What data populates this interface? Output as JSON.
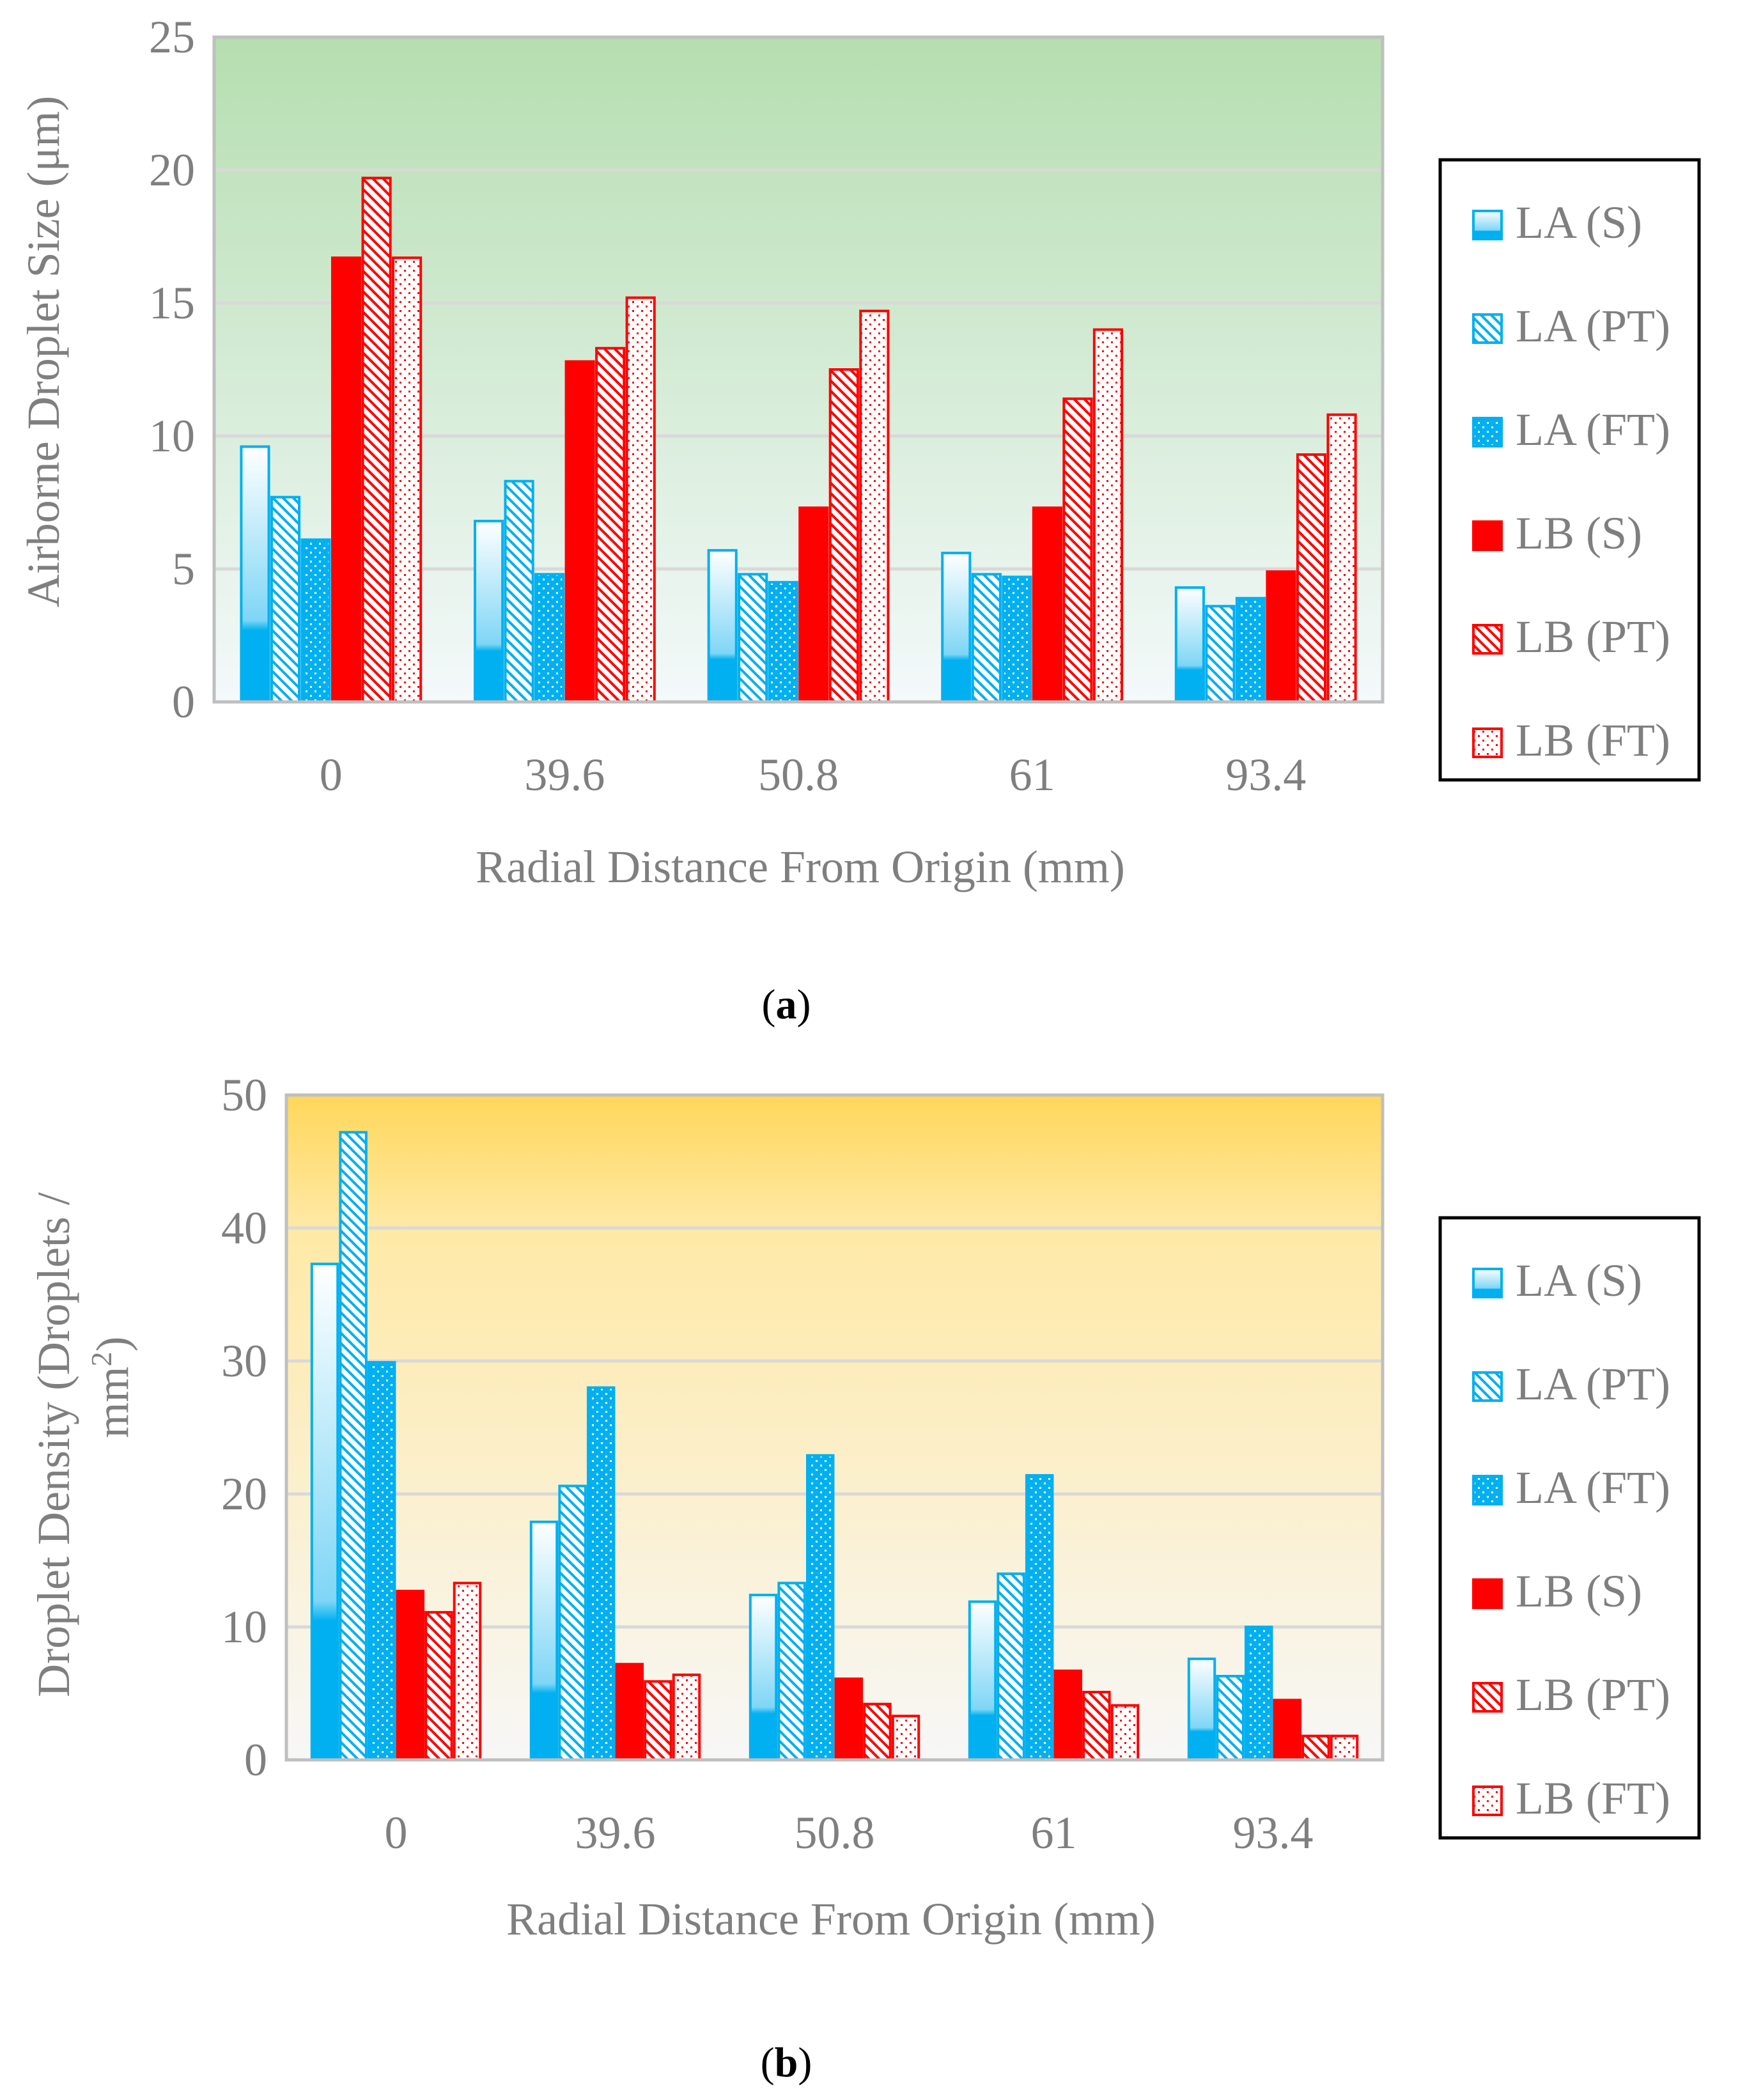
{
  "series_style": {
    "LA (S)": {
      "kind": "gradient",
      "color": "#00B0F0"
    },
    "LA (PT)": {
      "kind": "diag",
      "color": "#00B0F0"
    },
    "LA (FT)": {
      "kind": "dots",
      "color": "#00B0F0"
    },
    "LB (S)": {
      "kind": "solid",
      "color": "#FF0000"
    },
    "LB (PT)": {
      "kind": "diag",
      "color": "#FF0000"
    },
    "LB (FT)": {
      "kind": "dots",
      "color": "#FF0000"
    }
  },
  "chart_data": [
    {
      "type": "bar",
      "caption_letter": "a",
      "caption": "(a)",
      "xlabel": "Radial Distance From Origin (mm)",
      "ylabel": "Airborne Droplet Size (μm)",
      "ylim": [
        0,
        25
      ],
      "yticks": [
        "0",
        "5",
        "10",
        "15",
        "20",
        "25"
      ],
      "grid": true,
      "legend_position": "right",
      "background": {
        "top": "#B5DEB0",
        "bottom": "#F4F9FB"
      },
      "categories": [
        "0",
        "39.6",
        "50.8",
        "61",
        "93.4"
      ],
      "series": [
        {
          "name": "LA (S)",
          "values": [
            9.6,
            6.8,
            5.7,
            5.6,
            4.3
          ]
        },
        {
          "name": "LA (PT)",
          "values": [
            7.7,
            8.3,
            4.8,
            4.8,
            3.6
          ]
        },
        {
          "name": "LA (FT)",
          "values": [
            6.1,
            4.8,
            4.5,
            4.7,
            3.9
          ]
        },
        {
          "name": "LB (S)",
          "values": [
            16.7,
            12.8,
            7.3,
            7.3,
            4.9
          ]
        },
        {
          "name": "LB (PT)",
          "values": [
            19.7,
            13.3,
            12.5,
            11.4,
            9.3
          ]
        },
        {
          "name": "LB (FT)",
          "values": [
            16.7,
            15.2,
            14.7,
            14.0,
            10.8
          ]
        }
      ]
    },
    {
      "type": "bar",
      "caption_letter": "b",
      "caption": "(b)",
      "xlabel": "Radial Distance From Origin (mm)",
      "ylabel_line1": "Droplet Density (Droplets /",
      "ylabel_line2": "mm",
      "ylabel_sup": "2",
      "ylabel_close": ")",
      "ylim": [
        0,
        50
      ],
      "yticks": [
        "0",
        "10",
        "20",
        "30",
        "40",
        "50"
      ],
      "grid": true,
      "legend_position": "right",
      "background": {
        "top": "#FFD75A",
        "bottom": "#F7F7F7"
      },
      "categories": [
        "0",
        "39.6",
        "50.8",
        "61",
        "93.4"
      ],
      "series": [
        {
          "name": "LA (S)",
          "values": [
            37.3,
            17.9,
            12.4,
            11.9,
            7.6
          ]
        },
        {
          "name": "LA (PT)",
          "values": [
            47.2,
            20.6,
            13.3,
            14.0,
            6.3
          ]
        },
        {
          "name": "LA (FT)",
          "values": [
            29.9,
            28.0,
            22.9,
            21.4,
            10.0
          ]
        },
        {
          "name": "LB (S)",
          "values": [
            12.7,
            7.2,
            6.1,
            6.7,
            4.5
          ]
        },
        {
          "name": "LB (PT)",
          "values": [
            11.1,
            5.9,
            4.2,
            5.1,
            1.8
          ]
        },
        {
          "name": "LB (FT)",
          "values": [
            13.3,
            6.4,
            3.3,
            4.1,
            1.8
          ]
        }
      ]
    }
  ]
}
